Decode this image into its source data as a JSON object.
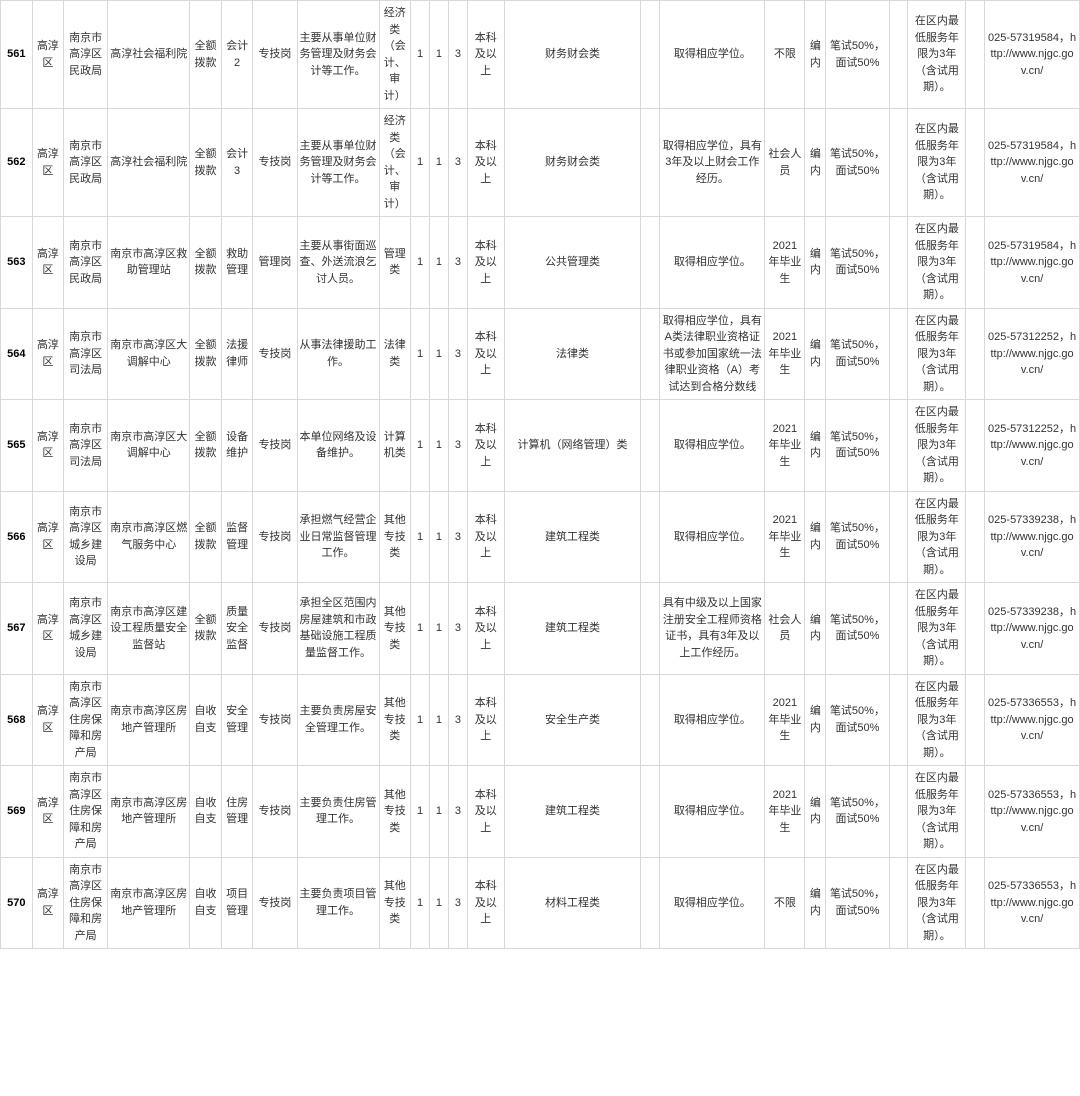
{
  "rows": [
    {
      "c1": "561",
      "c2": "高淳区",
      "c3": "南京市高淳区民政局",
      "c4": "高淳社会福利院",
      "c5": "全额拨款",
      "c6": "会计2",
      "c7": "专技岗",
      "c8": "主要从事单位财务管理及财务会计等工作。",
      "c9": "经济类（会计、审计）",
      "c10": "1",
      "c11": "1",
      "c12": "3",
      "c13": "本科及以上",
      "c14": "财务财会类",
      "c15": "",
      "c16": "取得相应学位。",
      "c17": "不限",
      "c18": "编内",
      "c19": "笔试50%，面试50%",
      "c20": "",
      "c21": "在区内最低服务年限为3年（含试用期）。",
      "c22": "",
      "c23": "025-57319584，http://www.njgc.gov.cn/"
    },
    {
      "c1": "562",
      "c2": "高淳区",
      "c3": "南京市高淳区民政局",
      "c4": "高淳社会福利院",
      "c5": "全额拨款",
      "c6": "会计3",
      "c7": "专技岗",
      "c8": "主要从事单位财务管理及财务会计等工作。",
      "c9": "经济类（会计、审计）",
      "c10": "1",
      "c11": "1",
      "c12": "3",
      "c13": "本科及以上",
      "c14": "财务财会类",
      "c15": "",
      "c16": "取得相应学位，具有3年及以上财会工作经历。",
      "c17": "社会人员",
      "c18": "编内",
      "c19": "笔试50%，面试50%",
      "c20": "",
      "c21": "在区内最低服务年限为3年（含试用期）。",
      "c22": "",
      "c23": "025-57319584，http://www.njgc.gov.cn/"
    },
    {
      "c1": "563",
      "c2": "高淳区",
      "c3": "南京市高淳区民政局",
      "c4": "南京市高淳区救助管理站",
      "c5": "全额拨款",
      "c6": "救助管理",
      "c7": "管理岗",
      "c8": "主要从事街面巡查、外送流浪乞讨人员。",
      "c9": "管理类",
      "c10": "1",
      "c11": "1",
      "c12": "3",
      "c13": "本科及以上",
      "c14": "公共管理类",
      "c15": "",
      "c16": "取得相应学位。",
      "c17": "2021年毕业生",
      "c18": "编内",
      "c19": "笔试50%，面试50%",
      "c20": "",
      "c21": "在区内最低服务年限为3年（含试用期）。",
      "c22": "",
      "c23": "025-57319584，http://www.njgc.gov.cn/"
    },
    {
      "c1": "564",
      "c2": "高淳区",
      "c3": "南京市高淳区司法局",
      "c4": "南京市高淳区大调解中心",
      "c5": "全额拨款",
      "c6": "法援律师",
      "c7": "专技岗",
      "c8": "从事法律援助工作。",
      "c9": "法律类",
      "c10": "1",
      "c11": "1",
      "c12": "3",
      "c13": "本科及以上",
      "c14": "法律类",
      "c15": "",
      "c16": "取得相应学位，具有A类法律职业资格证书或参加国家统一法律职业资格（A）考试达到合格分数线",
      "c17": "2021年毕业生",
      "c18": "编内",
      "c19": "笔试50%，面试50%",
      "c20": "",
      "c21": "在区内最低服务年限为3年（含试用期）。",
      "c22": "",
      "c23": "025-57312252，http://www.njgc.gov.cn/"
    },
    {
      "c1": "565",
      "c2": "高淳区",
      "c3": "南京市高淳区司法局",
      "c4": "南京市高淳区大调解中心",
      "c5": "全额拨款",
      "c6": "设备维护",
      "c7": "专技岗",
      "c8": "本单位网络及设备维护。",
      "c9": "计算机类",
      "c10": "1",
      "c11": "1",
      "c12": "3",
      "c13": "本科及以上",
      "c14": "计算机（网络管理）类",
      "c15": "",
      "c16": "取得相应学位。",
      "c17": "2021年毕业生",
      "c18": "编内",
      "c19": "笔试50%，面试50%",
      "c20": "",
      "c21": "在区内最低服务年限为3年（含试用期）。",
      "c22": "",
      "c23": "025-57312252，http://www.njgc.gov.cn/"
    },
    {
      "c1": "566",
      "c2": "高淳区",
      "c3": "南京市高淳区城乡建设局",
      "c4": "南京市高淳区燃气服务中心",
      "c5": "全额拨款",
      "c6": "监督管理",
      "c7": "专技岗",
      "c8": "承担燃气经营企业日常监督管理工作。",
      "c9": "其他专技类",
      "c10": "1",
      "c11": "1",
      "c12": "3",
      "c13": "本科及以上",
      "c14": "建筑工程类",
      "c15": "",
      "c16": "取得相应学位。",
      "c17": "2021年毕业生",
      "c18": "编内",
      "c19": "笔试50%，面试50%",
      "c20": "",
      "c21": "在区内最低服务年限为3年（含试用期）。",
      "c22": "",
      "c23": "025-57339238，http://www.njgc.gov.cn/"
    },
    {
      "c1": "567",
      "c2": "高淳区",
      "c3": "南京市高淳区城乡建设局",
      "c4": "南京市高淳区建设工程质量安全监督站",
      "c5": "全额拨款",
      "c6": "质量安全监督",
      "c7": "专技岗",
      "c8": "承担全区范围内房屋建筑和市政基础设施工程质量监督工作。",
      "c9": "其他专技类",
      "c10": "1",
      "c11": "1",
      "c12": "3",
      "c13": "本科及以上",
      "c14": "建筑工程类",
      "c15": "",
      "c16": "具有中级及以上国家注册安全工程师资格证书，具有3年及以上工作经历。",
      "c17": "社会人员",
      "c18": "编内",
      "c19": "笔试50%，面试50%",
      "c20": "",
      "c21": "在区内最低服务年限为3年（含试用期）。",
      "c22": "",
      "c23": "025-57339238，http://www.njgc.gov.cn/"
    },
    {
      "c1": "568",
      "c2": "高淳区",
      "c3": "南京市高淳区住房保障和房产局",
      "c4": "南京市高淳区房地产管理所",
      "c5": "自收自支",
      "c6": "安全管理",
      "c7": "专技岗",
      "c8": "主要负责房屋安全管理工作。",
      "c9": "其他专技类",
      "c10": "1",
      "c11": "1",
      "c12": "3",
      "c13": "本科及以上",
      "c14": "安全生产类",
      "c15": "",
      "c16": "取得相应学位。",
      "c17": "2021年毕业生",
      "c18": "编内",
      "c19": "笔试50%，面试50%",
      "c20": "",
      "c21": "在区内最低服务年限为3年（含试用期）。",
      "c22": "",
      "c23": "025-57336553，http://www.njgc.gov.cn/"
    },
    {
      "c1": "569",
      "c2": "高淳区",
      "c3": "南京市高淳区住房保障和房产局",
      "c4": "南京市高淳区房地产管理所",
      "c5": "自收自支",
      "c6": "住房管理",
      "c7": "专技岗",
      "c8": "主要负责住房管理工作。",
      "c9": "其他专技类",
      "c10": "1",
      "c11": "1",
      "c12": "3",
      "c13": "本科及以上",
      "c14": "建筑工程类",
      "c15": "",
      "c16": "取得相应学位。",
      "c17": "2021年毕业生",
      "c18": "编内",
      "c19": "笔试50%，面试50%",
      "c20": "",
      "c21": "在区内最低服务年限为3年（含试用期）。",
      "c22": "",
      "c23": "025-57336553，http://www.njgc.gov.cn/"
    },
    {
      "c1": "570",
      "c2": "高淳区",
      "c3": "南京市高淳区住房保障和房产局",
      "c4": "南京市高淳区房地产管理所",
      "c5": "自收自支",
      "c6": "项目管理",
      "c7": "专技岗",
      "c8": "主要负责项目管理工作。",
      "c9": "其他专技类",
      "c10": "1",
      "c11": "1",
      "c12": "3",
      "c13": "本科及以上",
      "c14": "材料工程类",
      "c15": "",
      "c16": "取得相应学位。",
      "c17": "不限",
      "c18": "编内",
      "c19": "笔试50%，面试50%",
      "c20": "",
      "c21": "在区内最低服务年限为3年（含试用期）。",
      "c22": "",
      "c23": "025-57336553，http://www.njgc.gov.cn/"
    }
  ]
}
